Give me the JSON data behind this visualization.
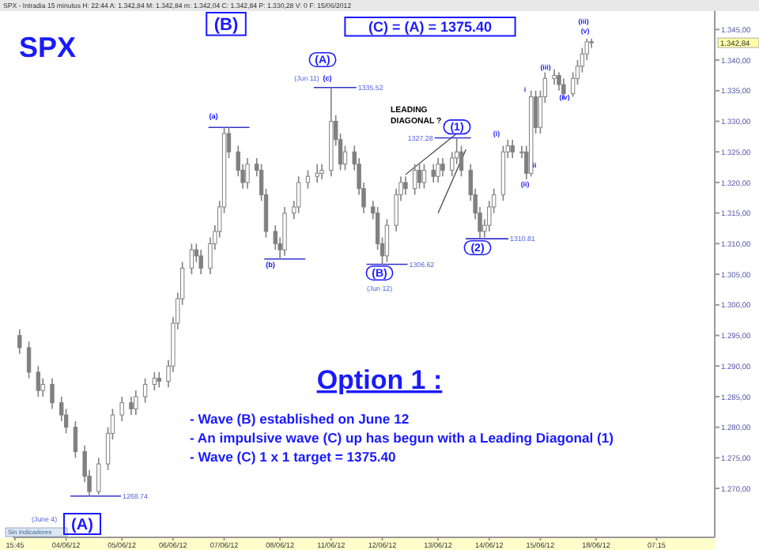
{
  "chart_data": {
    "type": "candlestick",
    "title": "SPX",
    "subtitle": "SPX - Intradia 15 minutos H: 22:44 A: 1.342,84 M: 1.342,84 m: 1.342,04 C: 1.342,84 P: 1.330,28 V: 0 F: 15/06/2012",
    "color": "#808080",
    "categories": [
      "15:45",
      null,
      null,
      null,
      null,
      null,
      null,
      null,
      null,
      null,
      null,
      "04/06/12",
      null,
      null,
      null,
      null,
      null,
      null,
      null,
      null,
      null,
      null,
      null,
      "05/06/12",
      null,
      null,
      null,
      null,
      null,
      null,
      null,
      null,
      null,
      null,
      "06/06/12",
      null,
      null,
      null,
      null,
      null,
      null,
      null,
      null,
      null,
      null,
      "07/06/12",
      null,
      null,
      null,
      null,
      null,
      null,
      null,
      null,
      null,
      null,
      null,
      "08/06/12",
      null,
      null,
      null,
      null,
      null,
      null,
      null,
      null,
      null,
      null,
      "11/06/12",
      null,
      null,
      null,
      null,
      null,
      null,
      null,
      null,
      null,
      null,
      "12/06/12",
      null,
      null,
      null,
      null,
      null,
      null,
      null,
      null,
      null,
      null,
      null,
      "13/06/12",
      null,
      null,
      null,
      null,
      null,
      null,
      null,
      null,
      null,
      null,
      "14/06/12",
      null,
      null,
      null,
      null,
      null,
      null,
      null,
      null,
      null,
      null,
      "15/06/12",
      null,
      null,
      null,
      null,
      null,
      null,
      null,
      null,
      null,
      null,
      null,
      "18/06/12",
      null,
      null,
      null,
      null,
      null,
      null,
      null,
      null,
      null,
      null,
      null,
      null,
      "07:15",
      null,
      null,
      null,
      null,
      null,
      null,
      null,
      null,
      null,
      null,
      null,
      null
    ],
    "ohlc": [
      null,
      [
        1295,
        1296,
        1292,
        1293
      ],
      null,
      [
        1293,
        1294,
        1288,
        1289
      ],
      null,
      [
        1289,
        1290,
        1285,
        1286
      ],
      [
        1286,
        1288,
        1285,
        1287
      ],
      null,
      [
        1287,
        1288,
        1283,
        1284
      ],
      null,
      [
        1284,
        1285,
        1281,
        1282
      ],
      [
        1282,
        1283,
        1279,
        1280
      ],
      null,
      [
        1280,
        1281,
        1275,
        1276
      ],
      null,
      [
        1276,
        1277,
        1271,
        1272
      ],
      [
        1272,
        1273,
        1268.74,
        1269.5
      ],
      null,
      [
        1269.5,
        1275,
        1269,
        1274
      ],
      null,
      [
        1274,
        1280,
        1273,
        1279
      ],
      [
        1279,
        1283,
        1278,
        1282
      ],
      null,
      [
        1282,
        1285,
        1281,
        1284
      ],
      null,
      [
        1284,
        1285,
        1282,
        1283
      ],
      [
        1283,
        1286,
        1282,
        1285
      ],
      null,
      [
        1285,
        1288,
        1284,
        1287
      ],
      null,
      [
        1287,
        1289,
        1286,
        1288
      ],
      [
        1288,
        1289,
        1286.5,
        1287.5
      ],
      null,
      [
        1287.5,
        1291,
        1286.5,
        1290
      ],
      [
        1290,
        1298,
        1289,
        1297
      ],
      [
        1297,
        1302,
        1296,
        1301
      ],
      [
        1301,
        1307,
        1300,
        1306
      ],
      null,
      [
        1306,
        1310,
        1305,
        1309
      ],
      [
        1309,
        1310,
        1307,
        1308
      ],
      [
        1308,
        1309,
        1305,
        1306
      ],
      null,
      [
        1306,
        1311,
        1305,
        1310
      ],
      [
        1310,
        1313,
        1309,
        1312
      ],
      [
        1312,
        1317,
        1311,
        1316
      ],
      [
        1316,
        1329,
        1315,
        1328
      ],
      [
        1328,
        1329,
        1324,
        1325
      ],
      null,
      [
        1325,
        1326,
        1321,
        1322
      ],
      [
        1322,
        1323,
        1319,
        1320
      ],
      [
        1320,
        1324,
        1319,
        1323
      ],
      null,
      [
        1323,
        1324,
        1321,
        1322
      ],
      [
        1322,
        1323,
        1317,
        1318
      ],
      [
        1318,
        1319,
        1311,
        1312
      ],
      null,
      [
        1312,
        1313,
        1309,
        1310
      ],
      [
        1310,
        1311,
        1307.5,
        1309
      ],
      [
        1309,
        1316,
        1308,
        1315
      ],
      null,
      [
        1315,
        1317,
        1314,
        1316
      ],
      [
        1316,
        1321,
        1315,
        1320
      ],
      null,
      [
        1320,
        1322,
        1319,
        1321
      ],
      null,
      [
        1321,
        1323,
        1320,
        1321.5
      ],
      [
        1321.5,
        1323,
        1320.5,
        1322
      ],
      null,
      [
        1322,
        1335.52,
        1321,
        1330
      ],
      [
        1330,
        1331,
        1326,
        1327
      ],
      [
        1327,
        1328,
        1322,
        1323
      ],
      [
        1323,
        1326,
        1322,
        1325
      ],
      null,
      [
        1325,
        1326,
        1322,
        1323
      ],
      [
        1323,
        1324,
        1318,
        1319
      ],
      [
        1319,
        1320,
        1315,
        1316
      ],
      null,
      [
        1316,
        1317,
        1314,
        1315
      ],
      [
        1315,
        1316,
        1309,
        1310
      ],
      [
        1310,
        1311,
        1306.62,
        1308
      ],
      [
        1308,
        1314,
        1307,
        1313
      ],
      null,
      [
        1313,
        1319,
        1312,
        1318
      ],
      [
        1318,
        1321,
        1317,
        1320
      ],
      [
        1320,
        1321,
        1318,
        1319
      ],
      null,
      [
        1319,
        1323,
        1318,
        1322
      ],
      [
        1322,
        1323,
        1319,
        1320
      ],
      [
        1320,
        1323,
        1319,
        1322
      ],
      null,
      [
        1322,
        1323,
        1320,
        1321
      ],
      [
        1321,
        1324,
        1320,
        1323
      ],
      [
        1323,
        1324,
        1321,
        1322
      ],
      null,
      [
        1322,
        1325,
        1321,
        1324
      ],
      [
        1324,
        1327.28,
        1323,
        1325
      ],
      [
        1325,
        1326,
        1321,
        1322
      ],
      null,
      [
        1322,
        1323,
        1317,
        1318
      ],
      [
        1318,
        1319,
        1314,
        1315
      ],
      [
        1315,
        1316,
        1310.81,
        1312
      ],
      [
        1312,
        1314,
        1311,
        1313
      ],
      [
        1313,
        1317,
        1312,
        1316
      ],
      [
        1316,
        1319,
        1315,
        1318
      ],
      null,
      [
        1318,
        1326,
        1317,
        1325
      ],
      [
        1325,
        1327,
        1324,
        1326
      ],
      [
        1326,
        1327,
        1324,
        1325
      ],
      null,
      [
        1325,
        1326,
        1324,
        1325
      ],
      [
        1325,
        1326,
        1320.5,
        1321.5
      ],
      [
        1321.5,
        1335,
        1321,
        1334
      ],
      [
        1334,
        1335,
        1328,
        1329
      ],
      [
        1329,
        1335,
        1328,
        1334
      ],
      [
        1334,
        1338,
        1333,
        1337
      ],
      null,
      [
        1337,
        1338.5,
        1336,
        1337.5
      ],
      [
        1337.5,
        1338,
        1335,
        1336
      ],
      [
        1336,
        1337,
        1333.5,
        1334.5
      ],
      null,
      [
        1334.5,
        1338,
        1334,
        1337
      ],
      [
        1337,
        1340,
        1336,
        1339
      ],
      [
        1339,
        1342,
        1338,
        1341
      ],
      [
        1341,
        1343.5,
        1340,
        1343
      ],
      [
        1343,
        1343.5,
        1342,
        1342.84
      ],
      null,
      null,
      null,
      null,
      null,
      null,
      null,
      null,
      null,
      null,
      null,
      null,
      null,
      null,
      null,
      null,
      null,
      null,
      null,
      null,
      null,
      null,
      null,
      null,
      null,
      null
    ],
    "ylim": [
      1262,
      1347.5
    ],
    "yticks": [
      {
        "value": 1270,
        "label": "1.270,00"
      },
      {
        "value": 1275,
        "label": "1.275,00"
      },
      {
        "value": 1280,
        "label": "1.280,00"
      },
      {
        "value": 1285,
        "label": "1.285,00"
      },
      {
        "value": 1290,
        "label": "1.290,00"
      },
      {
        "value": 1295,
        "label": "1.295,00"
      },
      {
        "value": 1300,
        "label": "1.300,00"
      },
      {
        "value": 1305,
        "label": "1.305,00"
      },
      {
        "value": 1310,
        "label": "1.310,00"
      },
      {
        "value": 1315,
        "label": "1.315,00"
      },
      {
        "value": 1320,
        "label": "1.320,00"
      },
      {
        "value": 1325,
        "label": "1.325,00"
      },
      {
        "value": 1330,
        "label": "1.330,00"
      },
      {
        "value": 1335,
        "label": "1.335,00"
      },
      {
        "value": 1340,
        "label": "1.340,00"
      },
      {
        "value": 1345,
        "label": "1.345,00"
      }
    ],
    "annotations": [
      "(B)",
      "(C) = (A) = 1375.40",
      "Option 1 :",
      "- Wave (B) established on June 12",
      "- An impulsive wave (C) up has begun with a Leading Diagonal (1)",
      "- Wave (C) 1 x 1 target = 1375.40",
      "LEADING DIAGONAL ?",
      "Sin Indicadores",
      "(A)",
      "(June 4)",
      "(a)",
      "(b)",
      "(A)",
      "(c)",
      "(Jun 11)",
      "(B)",
      "(Jun 12)",
      {
        "text": "(1)",
        "y": 1327.28
      },
      "(2)",
      "(i)",
      "(ii)",
      "i",
      "ii",
      "(iii)",
      "(iv)",
      "(iii)",
      "(v)",
      "1268.74",
      "1335.52",
      "1306.62",
      "1327.28",
      "1310.81",
      "1.342,84"
    ]
  }
}
